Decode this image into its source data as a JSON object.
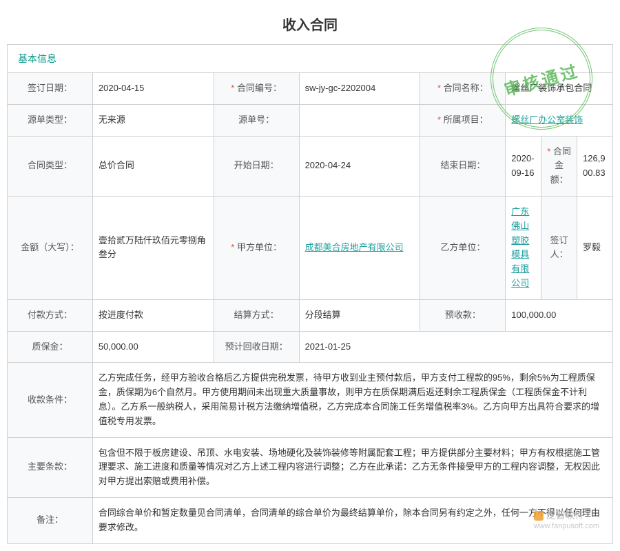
{
  "title": "收入合同",
  "section_header": "基本信息",
  "stamp": "审核通过",
  "watermark": {
    "name": "泛普软件",
    "url": "www.fanpusoft.com"
  },
  "labels": {
    "sign_date": "签订日期：",
    "contract_no": "合同编号：",
    "contract_name": "合同名称：",
    "source_type": "源单类型：",
    "source_no": "源单号：",
    "project": "所属项目：",
    "contract_type": "合同类型：",
    "start_date": "开始日期：",
    "end_date": "结束日期：",
    "amount": "合同金额：",
    "amount_cn": "金额（大写）：",
    "party_a": "甲方单位：",
    "party_b": "乙方单位：",
    "signer": "签订人：",
    "pay_method": "付款方式：",
    "settle_method": "结算方式：",
    "prepay": "预收款：",
    "deposit": "质保金：",
    "recover_date": "预计回收日期：",
    "pay_terms": "收款条件：",
    "main_terms": "主要条款：",
    "remarks": "备注："
  },
  "values": {
    "sign_date": "2020-04-15",
    "contract_no": "sw-jy-gc-2202004",
    "contract_name": "螺丝厂装饰承包合同",
    "source_type": "无来源",
    "source_no": "",
    "project": "螺丝厂办公室装饰",
    "contract_type": "总价合同",
    "start_date": "2020-04-24",
    "end_date": "2020-09-16",
    "amount": "126,900.83",
    "amount_cn": "壹拾贰万陆仟玖佰元零捌角叁分",
    "party_a": "成都美合房地产有限公司",
    "party_b": "广东佛山塑胶模具有限公司",
    "signer": "罗毅",
    "pay_method": "按进度付款",
    "settle_method": "分段结算",
    "prepay": "100,000.00",
    "deposit": "50,000.00",
    "recover_date": "2021-01-25",
    "pay_terms": "乙方完成任务，经甲方验收合格后乙方提供完税发票，待甲方收到业主预付款后，甲方支付工程款的95%，剩余5%为工程质保金，质保期为6个自然月。甲方使用期间未出现重大质量事故，则甲方在质保期满后返还剩余工程质保金（工程质保金不计利息）。乙方系一般纳税人，采用简易计税方法缴纳增值税，乙方完成本合同施工任务增值税率3%。乙方向甲方出具符合要求的增值税专用发票。",
    "main_terms": "包含但不限于板房建设、吊顶、水电安装、场地硬化及装饰装修等附属配套工程；甲方提供部分主要材料；甲方有权根据施工管理要求、施工进度和质量等情况对乙方上述工程内容进行调整；乙方在此承诺：乙方无条件接受甲方的工程内容调整，无权因此对甲方提出索赔或费用补偿。",
    "remarks": "合同综合单价和暂定数量见合同清单，合同清单的综合单价为最终结算单价，除本合同另有约定之外，任何一方不得以任何理由要求修改。"
  }
}
